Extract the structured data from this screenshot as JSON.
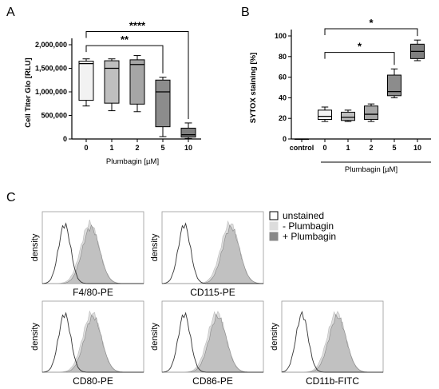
{
  "panels": {
    "a": "A",
    "b": "B",
    "c": "C"
  },
  "chart_data": [
    {
      "id": "A",
      "type": "box",
      "ylabel": "Cell Titer Glo [RLU]",
      "xlabel": "Plumbagin [µM]",
      "categories": [
        "0",
        "1",
        "2",
        "5",
        "10"
      ],
      "yticks": [
        "0",
        "500,000",
        "1,000,000",
        "1,500,000",
        "2,000,000"
      ],
      "ylim": [
        0,
        2000000
      ],
      "boxes": [
        {
          "cat": "0",
          "min": 700000,
          "q1": 820000,
          "median": 1600000,
          "q3": 1650000,
          "max": 1700000,
          "fill": "#f2f2f2"
        },
        {
          "cat": "1",
          "min": 600000,
          "q1": 760000,
          "median": 1500000,
          "q3": 1660000,
          "max": 1700000,
          "fill": "#bfbfbf"
        },
        {
          "cat": "2",
          "min": 580000,
          "q1": 740000,
          "median": 1580000,
          "q3": 1680000,
          "max": 1770000,
          "fill": "#a6a6a6"
        },
        {
          "cat": "5",
          "min": 50000,
          "q1": 260000,
          "median": 1000000,
          "q3": 1250000,
          "max": 1310000,
          "fill": "#8c8c8c"
        },
        {
          "cat": "10",
          "min": 10000,
          "q1": 40000,
          "median": 90000,
          "q3": 230000,
          "max": 340000,
          "fill": "#7f7f7f"
        }
      ],
      "significance": [
        {
          "from": "0",
          "to": "5",
          "label": "**",
          "y": 1980000
        },
        {
          "from": "0",
          "to": "10",
          "label": "****",
          "y": 2280000
        }
      ]
    },
    {
      "id": "B",
      "type": "box",
      "ylabel": "SYTOX staining [%]",
      "xlabel": "Plumbagin [µM]",
      "categories": [
        "control",
        "0",
        "1",
        "2",
        "5",
        "10"
      ],
      "yticks": [
        "0",
        "20",
        "40",
        "60",
        "80",
        "100"
      ],
      "ylim": [
        0,
        100
      ],
      "boxes": [
        {
          "cat": "control",
          "min": 0,
          "q1": 0,
          "median": 0,
          "q3": 0,
          "max": 0,
          "fill": "#ffffff"
        },
        {
          "cat": "0",
          "min": 17,
          "q1": 19,
          "median": 22,
          "q3": 28,
          "max": 31,
          "fill": "#f2f2f2"
        },
        {
          "cat": "1",
          "min": 17,
          "q1": 18,
          "median": 21,
          "q3": 26,
          "max": 28,
          "fill": "#bfbfbf"
        },
        {
          "cat": "2",
          "min": 17,
          "q1": 19,
          "median": 24,
          "q3": 32,
          "max": 34,
          "fill": "#a6a6a6"
        },
        {
          "cat": "5",
          "min": 40,
          "q1": 42,
          "median": 46,
          "q3": 62,
          "max": 68,
          "fill": "#8c8c8c"
        },
        {
          "cat": "10",
          "min": 76,
          "q1": 78,
          "median": 85,
          "q3": 92,
          "max": 96,
          "fill": "#7f7f7f"
        }
      ],
      "significance": [
        {
          "from": "0",
          "to": "5",
          "label": "*",
          "y": 84
        },
        {
          "from": "0",
          "to": "10",
          "label": "*",
          "y": 107
        }
      ]
    },
    {
      "id": "C",
      "type": "histogram",
      "ylabel": "density",
      "legend": [
        {
          "label": "unstained",
          "fill": "#ffffff"
        },
        {
          "label": "-  Plumbagin",
          "fill": "#dcdcdc"
        },
        {
          "label": "+ Plumbagin",
          "fill": "#888888"
        }
      ],
      "plots": [
        {
          "label": "F4/80-PE",
          "unstained": 0.22,
          "shift": 0.48
        },
        {
          "label": "CD115-PE",
          "unstained": 0.22,
          "shift": 0.68
        },
        {
          "label": "CD80-PE",
          "unstained": 0.22,
          "shift": 0.5
        },
        {
          "label": "CD86-PE",
          "unstained": 0.22,
          "shift": 0.55
        },
        {
          "label": "CD11b-FITC",
          "unstained": 0.2,
          "shift": 0.55
        }
      ]
    }
  ]
}
